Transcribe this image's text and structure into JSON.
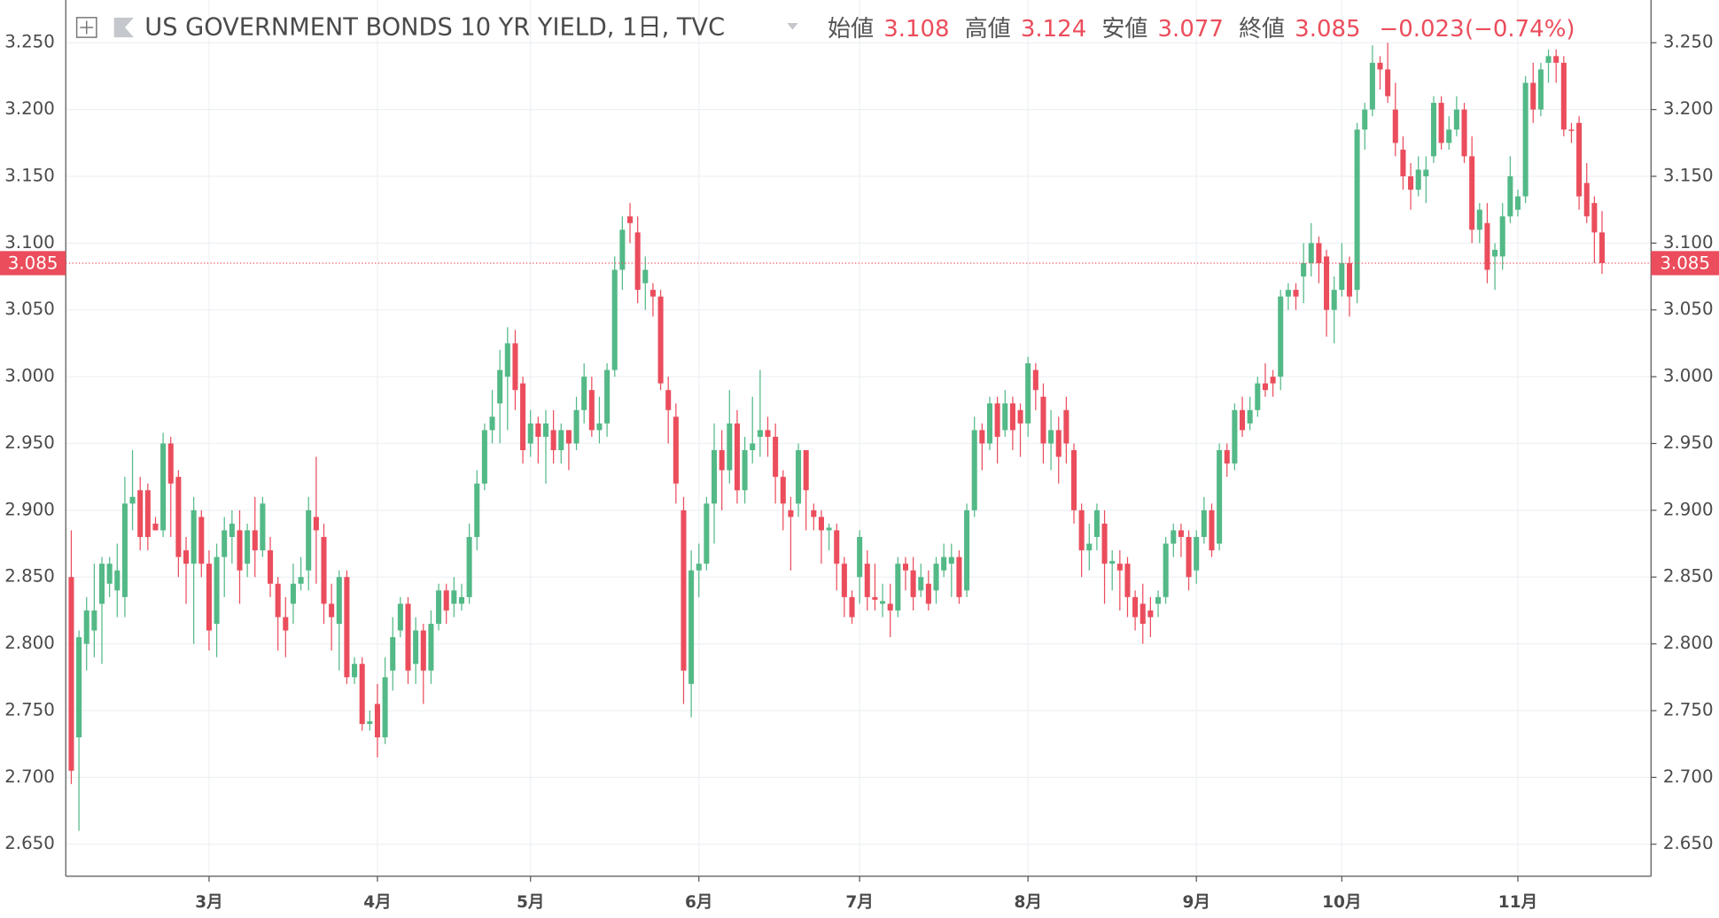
{
  "chart_data": {
    "type": "candlestick",
    "title": "US GOVERNMENT BONDS 10 YR YIELD, 1日, TVC",
    "header_labels": {
      "open": "始値",
      "high": "高値",
      "low": "安値",
      "close": "終値"
    },
    "change": {
      "value": -0.023,
      "label": "−0.023"
    },
    "change_percent": {
      "value": -0.74,
      "label": "(−0.74%)"
    },
    "last_price": 3.085,
    "up_color": "#53b987",
    "down_color": "#eb4d5c",
    "grid": true,
    "xlim": [
      -0.72,
      206.4
    ],
    "xticks": [
      {
        "value": 18,
        "label": "3月"
      },
      {
        "value": 40,
        "label": "4月"
      },
      {
        "value": 60,
        "label": "5月"
      },
      {
        "value": 82,
        "label": "6月"
      },
      {
        "value": 103,
        "label": "7月"
      },
      {
        "value": 125,
        "label": "8月"
      },
      {
        "value": 147,
        "label": "9月"
      },
      {
        "value": 166,
        "label": "10月"
      },
      {
        "value": 189,
        "label": "11月"
      }
    ],
    "ylim": [
      2.626,
      3.282
    ],
    "yticks": [
      {
        "value": 2.65,
        "label": "2.650"
      },
      {
        "value": 2.7,
        "label": "2.700"
      },
      {
        "value": 2.75,
        "label": "2.750"
      },
      {
        "value": 2.8,
        "label": "2.800"
      },
      {
        "value": 2.85,
        "label": "2.850"
      },
      {
        "value": 2.9,
        "label": "2.900"
      },
      {
        "value": 2.95,
        "label": "2.950"
      },
      {
        "value": 3.0,
        "label": "3.000"
      },
      {
        "value": 3.05,
        "label": "3.050"
      },
      {
        "value": 3.1,
        "label": "3.100"
      },
      {
        "value": 3.15,
        "label": "3.150"
      },
      {
        "value": 3.2,
        "label": "3.200"
      },
      {
        "value": 3.25,
        "label": "3.250"
      }
    ],
    "open": [
      2.85,
      2.73,
      2.8,
      2.81,
      2.83,
      2.845,
      2.84,
      2.835,
      2.905,
      2.915,
      2.915,
      2.89,
      2.885,
      2.95,
      2.925,
      2.87,
      2.86,
      2.895,
      2.86,
      2.815,
      2.865,
      2.88,
      2.885,
      2.86,
      2.885,
      2.87,
      2.87,
      2.845,
      2.82,
      2.83,
      2.845,
      2.855,
      2.895,
      2.88,
      2.83,
      2.815,
      2.85,
      2.775,
      2.785,
      2.74,
      2.755,
      2.73,
      2.78,
      2.81,
      2.83,
      2.785,
      2.81,
      2.78,
      2.815,
      2.84,
      2.83,
      2.83,
      2.835,
      2.88,
      2.92,
      2.96,
      2.98,
      3.0,
      3.025,
      2.995,
      2.95,
      2.965,
      2.955,
      2.96,
      2.945,
      2.96,
      2.95,
      2.975,
      2.99,
      2.96,
      2.965,
      3.005,
      3.08,
      3.12,
      3.108,
      3.07,
      3.065,
      3.06,
      2.99,
      2.97,
      2.9,
      2.77,
      2.855,
      2.86,
      2.905,
      2.945,
      2.93,
      2.965,
      2.915,
      2.945,
      2.955,
      2.96,
      2.955,
      2.925,
      2.9,
      2.905,
      2.945,
      2.9,
      2.895,
      2.885,
      2.885,
      2.86,
      2.835,
      2.85,
      2.86,
      2.835,
      2.83,
      2.83,
      2.825,
      2.86,
      2.855,
      2.84,
      2.845,
      2.84,
      2.855,
      2.86,
      2.865,
      2.84,
      2.9,
      2.96,
      2.95,
      2.98,
      2.96,
      2.98,
      2.975,
      2.965,
      3.005,
      2.985,
      2.95,
      2.96,
      2.975,
      2.945,
      2.9,
      2.87,
      2.88,
      2.89,
      2.86,
      2.86,
      2.86,
      2.835,
      2.83,
      2.825,
      2.83,
      2.835,
      2.875,
      2.885,
      2.88,
      2.855,
      2.88,
      2.9,
      2.875,
      2.945,
      2.935,
      2.975,
      2.965,
      2.975,
      2.995,
      3.0,
      3.0,
      3.06,
      3.065,
      3.075,
      3.085,
      3.1,
      3.09,
      3.05,
      3.065,
      3.085,
      3.065,
      3.185,
      3.2,
      3.235,
      3.23,
      3.2,
      3.17,
      3.15,
      3.14,
      3.15,
      3.165,
      3.205,
      3.175,
      3.185,
      3.2,
      3.165,
      3.11,
      3.115,
      3.09,
      3.09,
      3.12,
      3.125,
      3.135,
      3.22,
      3.2,
      3.235,
      3.24,
      3.235,
      3.185,
      3.19,
      3.145,
      3.13,
      3.108
    ],
    "high": [
      2.885,
      2.81,
      2.835,
      2.86,
      2.865,
      2.865,
      2.875,
      2.925,
      2.945,
      2.925,
      2.92,
      2.895,
      2.958,
      2.955,
      2.93,
      2.88,
      2.91,
      2.9,
      2.87,
      2.875,
      2.895,
      2.9,
      2.9,
      2.89,
      2.91,
      2.91,
      2.88,
      2.85,
      2.835,
      2.86,
      2.865,
      2.91,
      2.94,
      2.89,
      2.845,
      2.855,
      2.855,
      2.79,
      2.79,
      2.75,
      2.77,
      2.79,
      2.82,
      2.835,
      2.835,
      2.82,
      2.815,
      2.825,
      2.845,
      2.845,
      2.85,
      2.845,
      2.89,
      2.93,
      2.965,
      2.99,
      3.02,
      3.037,
      3.035,
      3.0,
      2.975,
      2.97,
      2.975,
      2.975,
      2.965,
      2.96,
      2.985,
      3.01,
      3.0,
      2.985,
      3.01,
      3.09,
      3.12,
      3.13,
      3.12,
      3.09,
      3.07,
      3.065,
      3.0,
      2.98,
      2.91,
      2.87,
      2.875,
      2.91,
      2.965,
      2.96,
      2.99,
      2.975,
      2.955,
      2.985,
      3.005,
      2.97,
      2.965,
      2.93,
      2.91,
      2.95,
      2.945,
      2.905,
      2.9,
      2.89,
      2.89,
      2.865,
      2.84,
      2.885,
      2.87,
      2.86,
      2.845,
      2.845,
      2.865,
      2.865,
      2.865,
      2.86,
      2.855,
      2.865,
      2.875,
      2.875,
      2.87,
      2.905,
      2.97,
      2.965,
      2.985,
      2.985,
      2.99,
      2.985,
      2.98,
      3.015,
      3.01,
      2.995,
      2.975,
      2.97,
      2.985,
      2.95,
      2.905,
      2.89,
      2.905,
      2.9,
      2.87,
      2.87,
      2.865,
      2.84,
      2.845,
      2.835,
      2.84,
      2.88,
      2.89,
      2.89,
      2.885,
      2.885,
      2.91,
      2.905,
      2.95,
      2.95,
      2.98,
      2.985,
      2.985,
      3.0,
      3.01,
      3.005,
      3.065,
      3.07,
      3.07,
      3.1,
      3.115,
      3.105,
      3.095,
      3.075,
      3.1,
      3.09,
      3.19,
      3.205,
      3.248,
      3.24,
      3.25,
      3.22,
      3.18,
      3.16,
      3.165,
      3.165,
      3.21,
      3.21,
      3.195,
      3.21,
      3.205,
      3.18,
      3.13,
      3.13,
      3.1,
      3.13,
      3.165,
      3.14,
      3.225,
      3.235,
      3.235,
      3.245,
      3.245,
      3.24,
      3.19,
      3.195,
      3.16,
      3.135,
      3.124
    ],
    "low": [
      2.695,
      2.66,
      2.78,
      2.79,
      2.785,
      2.835,
      2.82,
      2.82,
      2.885,
      2.87,
      2.87,
      2.885,
      2.88,
      2.88,
      2.85,
      2.83,
      2.8,
      2.85,
      2.795,
      2.79,
      2.835,
      2.86,
      2.83,
      2.85,
      2.85,
      2.865,
      2.835,
      2.795,
      2.79,
      2.815,
      2.84,
      2.84,
      2.845,
      2.815,
      2.795,
      2.78,
      2.77,
      2.77,
      2.735,
      2.735,
      2.715,
      2.725,
      2.765,
      2.805,
      2.77,
      2.77,
      2.755,
      2.77,
      2.81,
      2.815,
      2.82,
      2.825,
      2.83,
      2.87,
      2.915,
      2.95,
      2.95,
      2.96,
      2.975,
      2.935,
      2.94,
      2.935,
      2.92,
      2.935,
      2.935,
      2.93,
      2.945,
      2.965,
      2.955,
      2.95,
      2.955,
      3.0,
      3.065,
      3.1,
      3.055,
      3.05,
      3.045,
      2.99,
      2.95,
      2.905,
      2.755,
      2.745,
      2.835,
      2.855,
      2.875,
      2.9,
      2.92,
      2.905,
      2.905,
      2.935,
      2.94,
      2.94,
      2.905,
      2.885,
      2.855,
      2.895,
      2.885,
      2.885,
      2.86,
      2.87,
      2.84,
      2.82,
      2.815,
      2.83,
      2.825,
      2.825,
      2.82,
      2.805,
      2.82,
      2.84,
      2.825,
      2.835,
      2.825,
      2.83,
      2.85,
      2.835,
      2.83,
      2.835,
      2.895,
      2.93,
      2.945,
      2.935,
      2.955,
      2.945,
      2.94,
      2.955,
      2.975,
      2.935,
      2.93,
      2.92,
      2.935,
      2.89,
      2.85,
      2.855,
      2.87,
      2.83,
      2.84,
      2.825,
      2.82,
      2.81,
      2.8,
      2.805,
      2.82,
      2.83,
      2.865,
      2.865,
      2.84,
      2.845,
      2.875,
      2.865,
      2.87,
      2.925,
      2.93,
      2.955,
      2.96,
      2.97,
      2.985,
      2.985,
      2.99,
      3.05,
      3.05,
      3.055,
      3.075,
      3.07,
      3.03,
      3.025,
      3.06,
      3.045,
      3.055,
      3.17,
      3.195,
      3.215,
      3.205,
      3.165,
      3.14,
      3.125,
      3.135,
      3.13,
      3.16,
      3.17,
      3.17,
      3.18,
      3.16,
      3.1,
      3.1,
      3.07,
      3.065,
      3.08,
      3.115,
      3.12,
      3.13,
      3.19,
      3.195,
      3.22,
      3.22,
      3.18,
      3.175,
      3.125,
      3.115,
      3.085,
      3.077
    ],
    "close": [
      2.705,
      2.805,
      2.825,
      2.825,
      2.86,
      2.86,
      2.855,
      2.905,
      2.91,
      2.88,
      2.88,
      2.885,
      2.95,
      2.92,
      2.865,
      2.86,
      2.9,
      2.86,
      2.81,
      2.865,
      2.885,
      2.89,
      2.855,
      2.885,
      2.87,
      2.905,
      2.845,
      2.82,
      2.81,
      2.845,
      2.85,
      2.9,
      2.885,
      2.83,
      2.82,
      2.85,
      2.775,
      2.785,
      2.74,
      2.742,
      2.73,
      2.775,
      2.805,
      2.83,
      2.78,
      2.81,
      2.78,
      2.815,
      2.84,
      2.825,
      2.84,
      2.835,
      2.88,
      2.92,
      2.96,
      2.97,
      3.005,
      3.025,
      2.99,
      2.945,
      2.965,
      2.955,
      2.965,
      2.945,
      2.96,
      2.95,
      2.975,
      3.0,
      2.96,
      2.965,
      3.005,
      3.08,
      3.11,
      3.115,
      3.065,
      3.08,
      3.06,
      2.995,
      2.975,
      2.92,
      2.78,
      2.855,
      2.86,
      2.905,
      2.945,
      2.93,
      2.965,
      2.915,
      2.945,
      2.95,
      2.96,
      2.955,
      2.925,
      2.905,
      2.895,
      2.945,
      2.915,
      2.895,
      2.885,
      2.887,
      2.86,
      2.835,
      2.82,
      2.88,
      2.835,
      2.833,
      2.832,
      2.825,
      2.86,
      2.855,
      2.835,
      2.85,
      2.83,
      2.86,
      2.865,
      2.865,
      2.835,
      2.9,
      2.96,
      2.95,
      2.98,
      2.955,
      2.98,
      2.96,
      2.965,
      3.01,
      2.99,
      2.95,
      2.96,
      2.94,
      2.95,
      2.9,
      2.87,
      2.875,
      2.9,
      2.86,
      2.862,
      2.855,
      2.835,
      2.82,
      2.815,
      2.82,
      2.835,
      2.875,
      2.885,
      2.88,
      2.85,
      2.88,
      2.9,
      2.87,
      2.945,
      2.935,
      2.975,
      2.96,
      2.975,
      2.995,
      2.99,
      2.995,
      3.06,
      3.065,
      3.06,
      3.085,
      3.1,
      3.085,
      3.05,
      3.065,
      3.085,
      3.06,
      3.185,
      3.2,
      3.235,
      3.23,
      3.21,
      3.175,
      3.15,
      3.14,
      3.155,
      3.155,
      3.205,
      3.175,
      3.185,
      3.2,
      3.165,
      3.11,
      3.125,
      3.08,
      3.095,
      3.12,
      3.15,
      3.135,
      3.22,
      3.2,
      3.23,
      3.24,
      3.235,
      3.185,
      3.184,
      3.135,
      3.12,
      3.108,
      3.085
    ]
  }
}
